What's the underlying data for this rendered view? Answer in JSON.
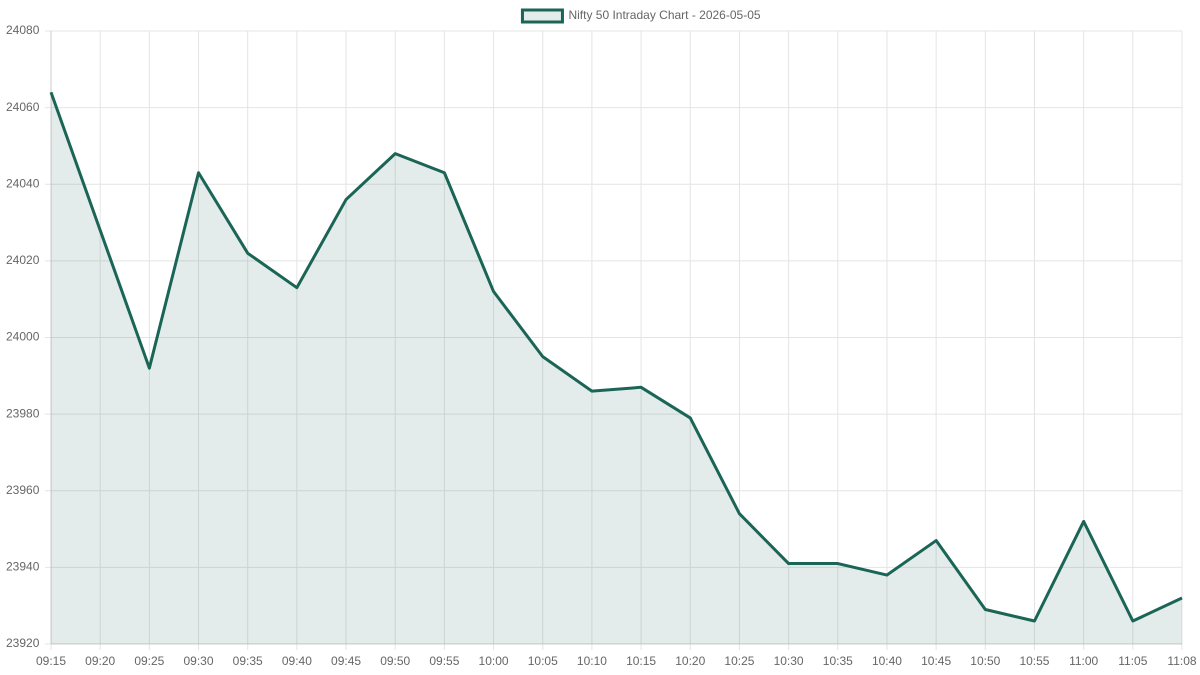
{
  "chart_data": {
    "type": "line",
    "categories": [
      "09:15",
      "09:20",
      "09:25",
      "09:30",
      "09:35",
      "09:40",
      "09:45",
      "09:50",
      "09:55",
      "10:00",
      "10:05",
      "10:10",
      "10:15",
      "10:20",
      "10:25",
      "10:30",
      "10:35",
      "10:40",
      "10:45",
      "10:50",
      "10:55",
      "11:00",
      "11:05",
      "11:08"
    ],
    "series": [
      {
        "name": "Nifty 50 Intraday Chart - 2026-05-05",
        "color": "#1b6557",
        "values": [
          24064,
          24028,
          23992,
          24043,
          24022,
          24013,
          24036,
          24048,
          24043,
          24012,
          23995,
          23986,
          23987,
          23979,
          23954,
          23941,
          23941,
          23938,
          23947,
          23929,
          23926,
          23952,
          23926,
          23932
        ]
      }
    ],
    "ylim": [
      23920,
      24080
    ],
    "yticks": [
      23920,
      23940,
      23960,
      23980,
      24000,
      24020,
      24040,
      24060,
      24080
    ],
    "grid": true,
    "fill": true,
    "legend": "top"
  }
}
